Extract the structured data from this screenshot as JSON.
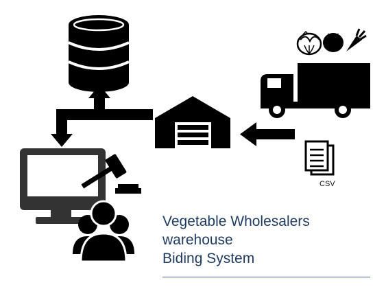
{
  "diagram": {
    "title_lines": [
      "Vegetable Wholesalers",
      "warehouse",
      "Biding System"
    ],
    "file_label": "CSV"
  },
  "colors": {
    "icon": "#000000",
    "title_text": "#1f3a5f",
    "rule": "#4a6d96"
  },
  "icons": {
    "database": "database-icon",
    "warehouse": "warehouse-icon",
    "truck": "truck-icon",
    "monitor": "monitor-icon",
    "gavel": "gavel-icon",
    "users": "users-group-icon",
    "document": "document-csv-icon",
    "produce": [
      "cabbage-icon",
      "tomato-icon",
      "carrot-icon"
    ]
  }
}
